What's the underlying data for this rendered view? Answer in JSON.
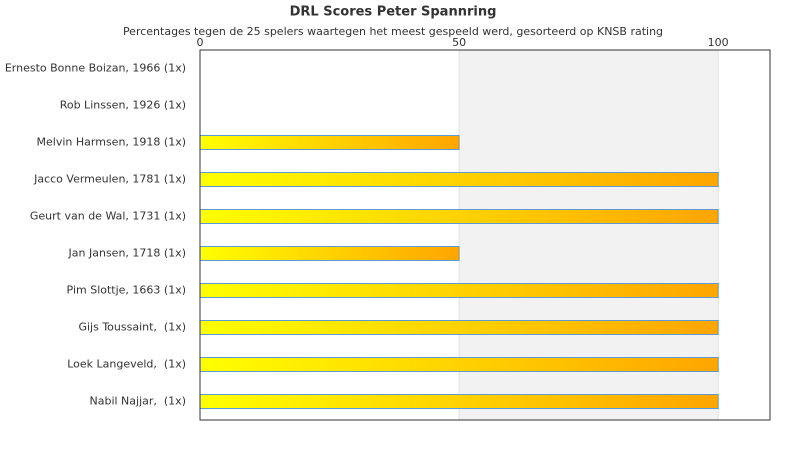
{
  "chart_data": {
    "type": "hbar",
    "title": "DRL Scores Peter Spannring",
    "subtitle": "Percentages tegen de 25 spelers waartegen het meest gespeeld werd, gesorteerd op KNSB rating",
    "categories": [
      "Ernesto Bonne Boizan, 1966 (1x)",
      "Rob Linssen, 1926 (1x)",
      "Melvin Harmsen, 1918 (1x)",
      "Jacco Vermeulen, 1781 (1x)",
      "Geurt van de Wal, 1731 (1x)",
      "Jan Jansen, 1718 (1x)",
      "Pim Slottje, 1663 (1x)",
      "Gijs Toussaint,  (1x)",
      "Loek Langeveld,  (1x)",
      "Nabil Najjar,  (1x)"
    ],
    "values": [
      0,
      0,
      50,
      100,
      100,
      50,
      100,
      100,
      100,
      100
    ],
    "gradient": [
      "#ffff00",
      "#ffa500"
    ],
    "xlim": [
      0,
      110
    ],
    "xticks": [
      0,
      50,
      100
    ],
    "grid": true
  }
}
